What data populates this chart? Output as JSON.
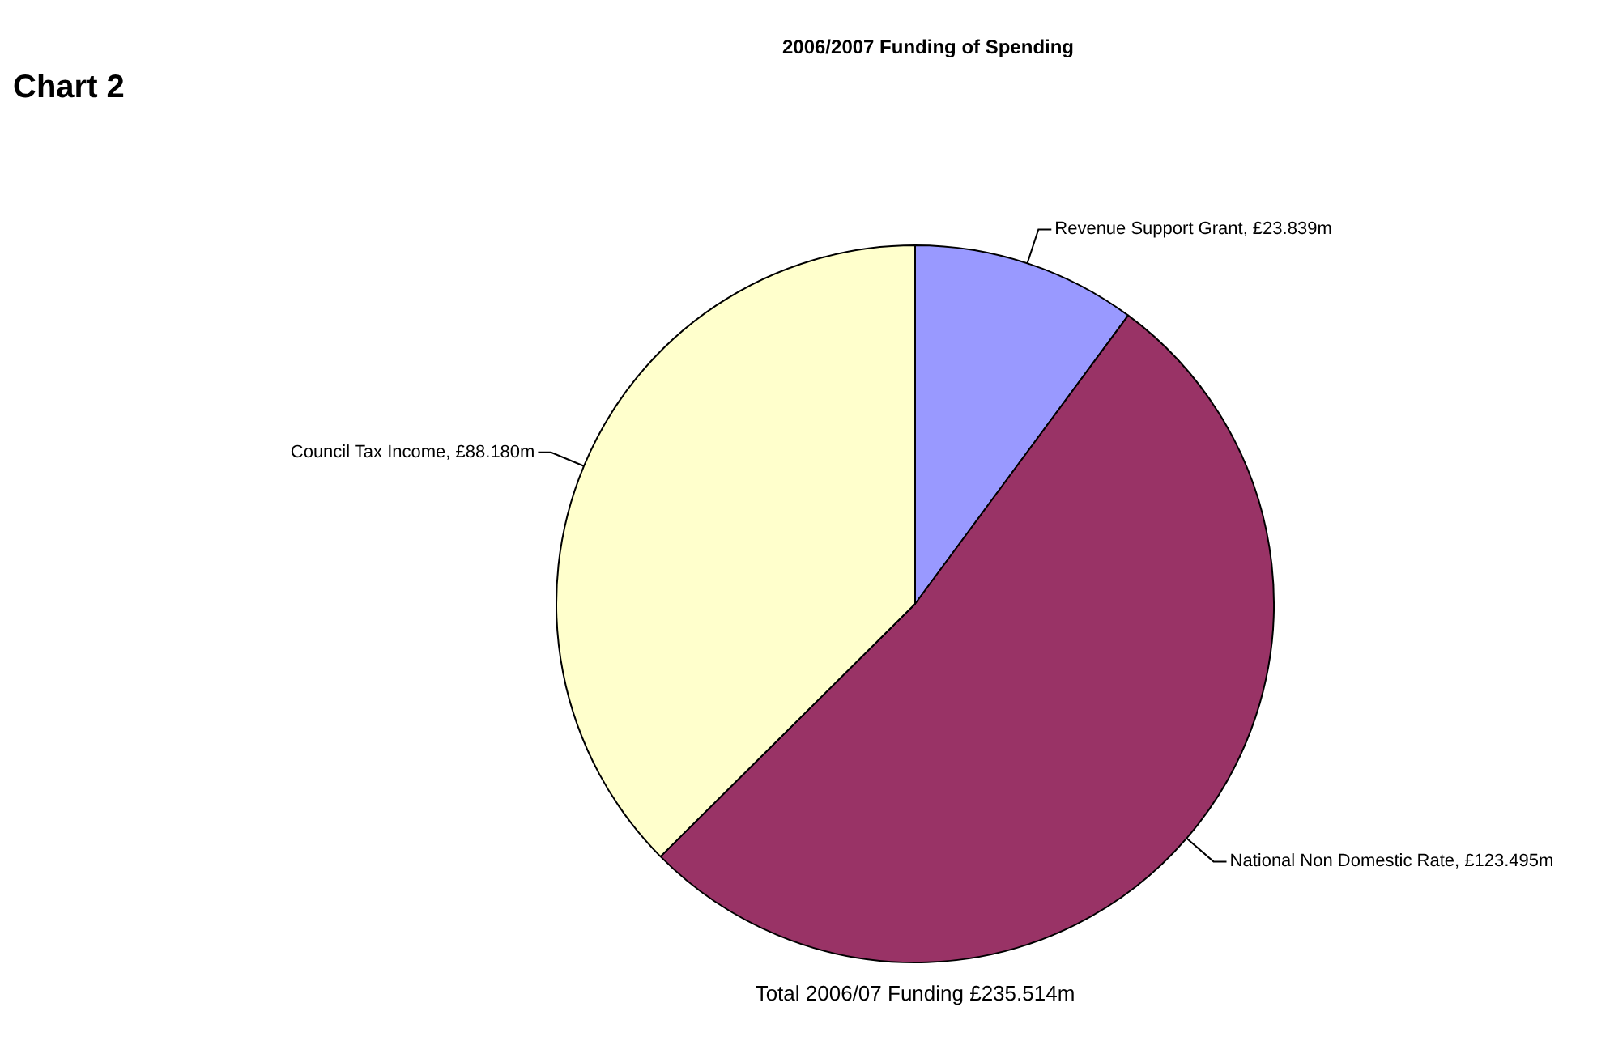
{
  "chart_data": {
    "type": "pie",
    "title": "2006/2007 Funding of Spending",
    "categories": [
      "Revenue Support Grant",
      "National Non Domestic Rate",
      "Council Tax Income"
    ],
    "values": [
      23.839,
      123.495,
      88.18
    ],
    "colors": [
      "#9999ff",
      "#993366",
      "#ffffcc"
    ],
    "value_labels": [
      "£23.839m",
      "£123.495m",
      "£88.180m"
    ],
    "annotations": [
      "Chart 2",
      "Total 2006/07 Funding £235.514m"
    ]
  }
}
